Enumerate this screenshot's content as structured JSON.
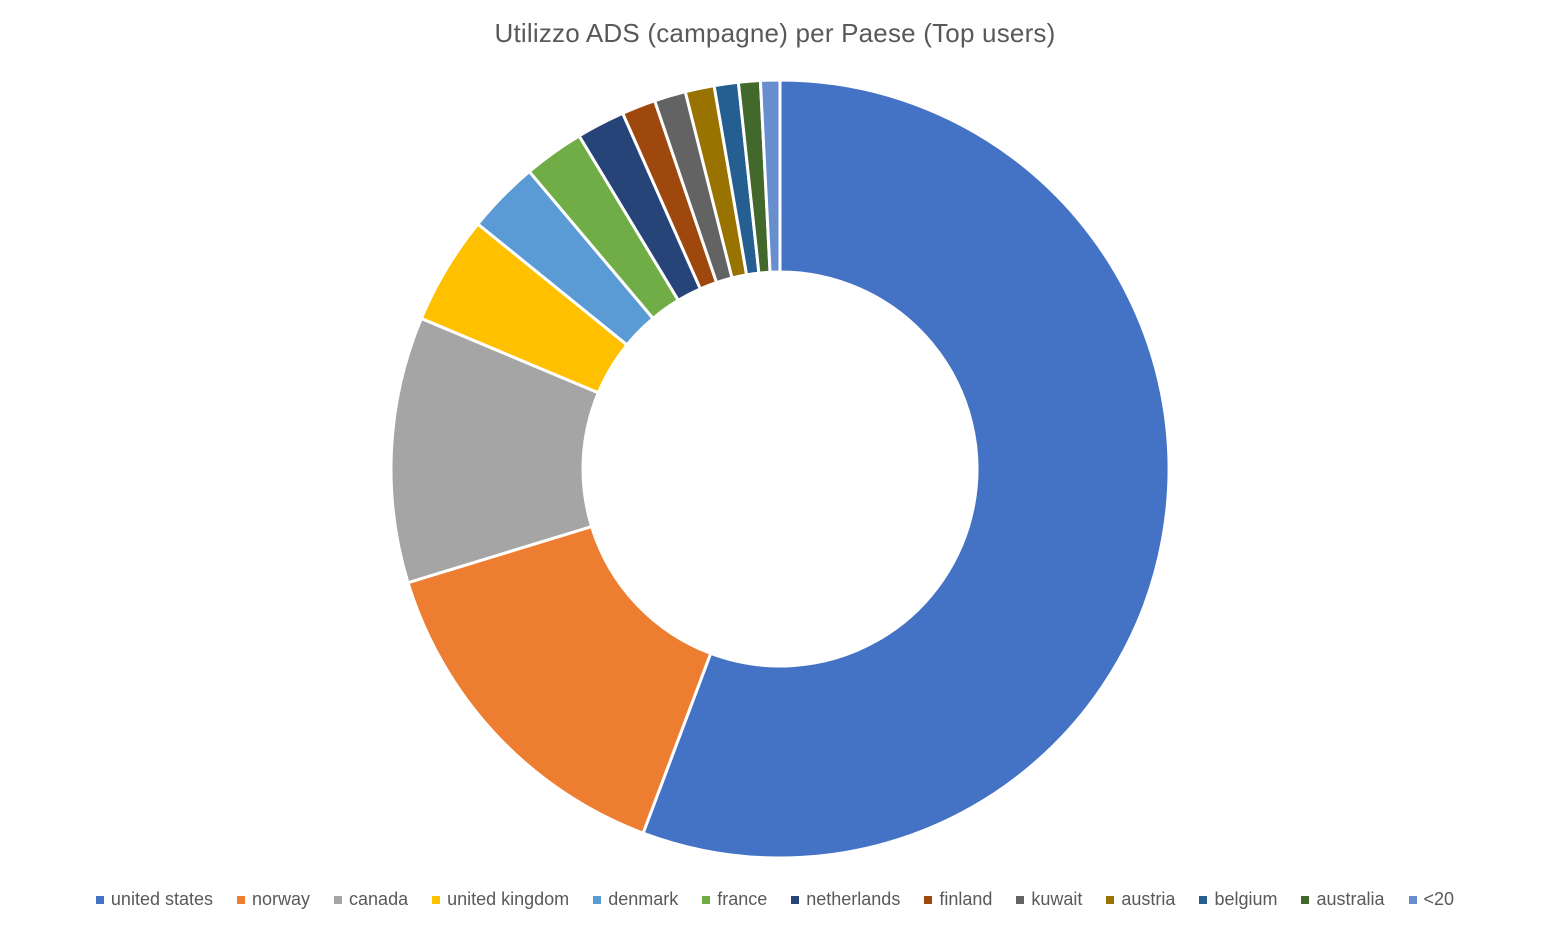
{
  "chart_data": {
    "type": "pie",
    "variant": "donut",
    "title": "Utilizzo ADS (campagne) per Paese (Top users)",
    "legend_position": "bottom",
    "categories": [
      "united states",
      "norway",
      "canada",
      "united kingdom",
      "denmark",
      "france",
      "netherlands",
      "finland",
      "kuwait",
      "austria",
      "belgium",
      "australia",
      "<20"
    ],
    "values": [
      55.5,
      14.5,
      11.0,
      4.5,
      3.0,
      2.5,
      2.0,
      1.4,
      1.3,
      1.2,
      1.0,
      0.9,
      0.8
    ],
    "colors": [
      "#4472C4",
      "#ED7D31",
      "#A5A5A5",
      "#FFC000",
      "#5B9BD5",
      "#70AD47",
      "#264478",
      "#9E480E",
      "#636363",
      "#997300",
      "#255E91",
      "#43682B",
      "#698ED0"
    ]
  }
}
